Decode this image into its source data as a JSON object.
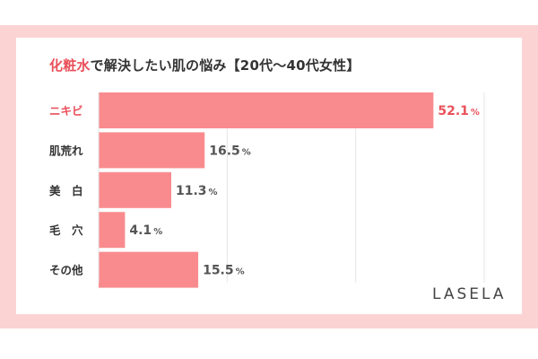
{
  "title": {
    "highlight": "化粧水",
    "rest": "で解決したい肌の悩み【20代～40代女性】"
  },
  "brand": "LASELA",
  "colors": {
    "background": "#fcd3d3",
    "bar": "#f98b8e",
    "accent": "#e9505a",
    "text": "#333333",
    "value_text": "#555555",
    "grid": "#e6e6e6"
  },
  "chart_data": {
    "type": "bar",
    "orientation": "horizontal",
    "title": "化粧水で解決したい肌の悩み【20代～40代女性】",
    "categories": [
      "ニキビ",
      "肌荒れ",
      "美　白",
      "毛　穴",
      "その他"
    ],
    "values": [
      52.1,
      16.5,
      11.3,
      4.1,
      15.5
    ],
    "value_suffix": "%",
    "highlight_index": 0,
    "xlim": [
      0,
      60
    ],
    "grid": true,
    "legend": "none"
  }
}
